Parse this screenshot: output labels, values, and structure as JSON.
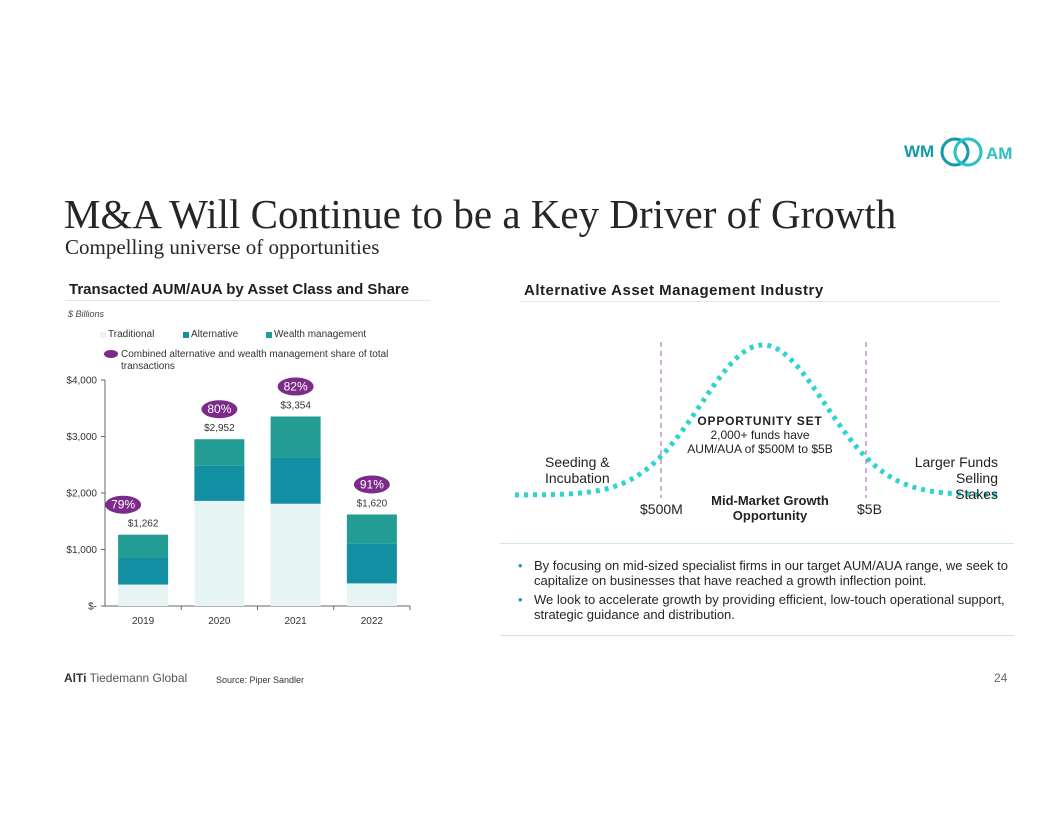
{
  "header": {
    "logo_left": "WM",
    "logo_right": "AM",
    "title": "M&A Will Continue to be a Key Driver of Growth",
    "subtitle": "Compelling universe of opportunities"
  },
  "colors": {
    "traditional": "#e6f4f3",
    "alternative": "#138fa3",
    "wealth_management": "#239d93",
    "share": "#7b2b8a",
    "curve": "#2fd3cf",
    "dashed_line": "#b278bc",
    "logo_teal": "#139aa6"
  },
  "left_panel": {
    "title": "Transacted AUM/AUA by Asset Class and Share",
    "units": "$ Billions",
    "legend": {
      "traditional": "Traditional",
      "alternative": "Alternative",
      "wealth": "Wealth management",
      "share": "Combined alternative and wealth management share of total transactions"
    }
  },
  "chart_data": {
    "type": "bar",
    "stacked": true,
    "title": "Transacted AUM/AUA by Asset Class and Share",
    "ylabel": "$ Billions",
    "ylim": [
      0,
      4000
    ],
    "y_ticks": [
      0,
      1000,
      2000,
      3000,
      4000
    ],
    "y_tick_labels": [
      "$-",
      "$1,000",
      "$2,000",
      "$3,000",
      "$4,000"
    ],
    "categories": [
      "2019",
      "2020",
      "2021",
      "2022"
    ],
    "series": [
      {
        "name": "Traditional",
        "values": [
          380,
          1860,
          1810,
          400
        ]
      },
      {
        "name": "Alternative",
        "values": [
          470,
          620,
          820,
          710
        ]
      },
      {
        "name": "Wealth management",
        "values": [
          412,
          472,
          724,
          510
        ]
      }
    ],
    "totals": [
      1262,
      2952,
      3354,
      1620
    ],
    "total_labels": [
      "$1,262",
      "$2,952",
      "$3,354",
      "$1,620"
    ],
    "share_labels": [
      "79%",
      "80%",
      "82%",
      "91%"
    ],
    "legend_position": "top-left"
  },
  "right_panel": {
    "title": "Alternative Asset Management Industry",
    "seeding": "Seeding & Incubation",
    "larger": "Larger Funds Selling Stakes",
    "low": "$500M",
    "high": "$5B",
    "opportunity_heading": "OPPORTUNITY SET",
    "opportunity_line1": "2,000+ funds have",
    "opportunity_line2": "AUM/AUA of $500M to $5B",
    "mid_market": "Mid-Market Growth Opportunity"
  },
  "bullets": [
    "By focusing on mid-sized specialist firms in our target AUM/AUA range, we seek to capitalize on businesses that have reached a growth inflection point.",
    "We look to accelerate growth by providing efficient, low-touch operational support, strategic guidance and distribution."
  ],
  "footer": {
    "brand_bold": "AlTi",
    "brand_rest": "Tiedemann Global",
    "source": "Source: Piper Sandler",
    "page_number": "24"
  }
}
